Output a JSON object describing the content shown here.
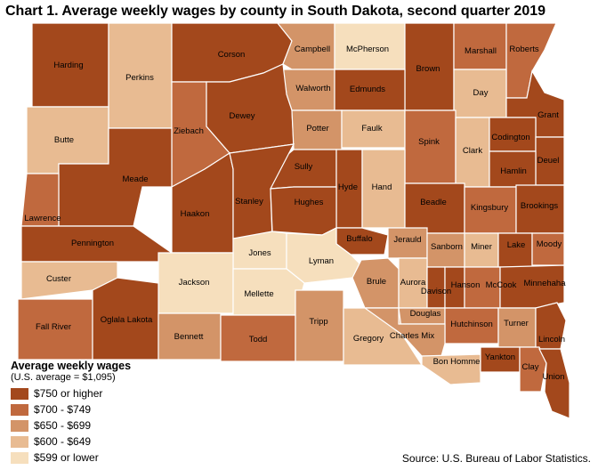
{
  "title": "Chart 1. Average weekly wages by county in South Dakota, second quarter 2019",
  "source": "Source: U.S. Bureau of Labor Statistics.",
  "legend": {
    "title": "Average weekly wages",
    "subtitle": "(U.S. average = $1,095)",
    "classes": [
      {
        "label": "$750 or higher",
        "color": "#a3481c"
      },
      {
        "label": "$700 - $749",
        "color": "#c0693e"
      },
      {
        "label": "$650 - $699",
        "color": "#d39468"
      },
      {
        "label": "$600 - $649",
        "color": "#e8bb92"
      },
      {
        "label": "$599 or lower",
        "color": "#f6dfbd"
      }
    ]
  },
  "counties": [
    {
      "name": "Harding",
      "class": 0
    },
    {
      "name": "Perkins",
      "class": 3
    },
    {
      "name": "Corson",
      "class": 0
    },
    {
      "name": "Campbell",
      "class": 2
    },
    {
      "name": "McPherson",
      "class": 4
    },
    {
      "name": "Brown",
      "class": 0
    },
    {
      "name": "Marshall",
      "class": 1
    },
    {
      "name": "Roberts",
      "class": 1
    },
    {
      "name": "Walworth",
      "class": 2
    },
    {
      "name": "Edmunds",
      "class": 0
    },
    {
      "name": "Day",
      "class": 3
    },
    {
      "name": "Butte",
      "class": 3
    },
    {
      "name": "Ziebach",
      "class": 1
    },
    {
      "name": "Dewey",
      "class": 0
    },
    {
      "name": "Potter",
      "class": 2
    },
    {
      "name": "Faulk",
      "class": 3
    },
    {
      "name": "Spink",
      "class": 1
    },
    {
      "name": "Clark",
      "class": 3
    },
    {
      "name": "Grant",
      "class": 0
    },
    {
      "name": "Codington",
      "class": 0
    },
    {
      "name": "Deuel",
      "class": 0
    },
    {
      "name": "Hamlin",
      "class": 0
    },
    {
      "name": "Meade",
      "class": 0
    },
    {
      "name": "Sully",
      "class": 0
    },
    {
      "name": "Hyde",
      "class": 0
    },
    {
      "name": "Hand",
      "class": 3
    },
    {
      "name": "Beadle",
      "class": 0
    },
    {
      "name": "Kingsbury",
      "class": 1
    },
    {
      "name": "Brookings",
      "class": 0
    },
    {
      "name": "Lawrence",
      "class": 1
    },
    {
      "name": "Haakon",
      "class": 0
    },
    {
      "name": "Stanley",
      "class": 0
    },
    {
      "name": "Hughes",
      "class": 0
    },
    {
      "name": "Pennington",
      "class": 0
    },
    {
      "name": "Buffalo",
      "class": 0
    },
    {
      "name": "Jerauld",
      "class": 2
    },
    {
      "name": "Sanborn",
      "class": 2
    },
    {
      "name": "Miner",
      "class": 3
    },
    {
      "name": "Lake",
      "class": 0
    },
    {
      "name": "Moody",
      "class": 1
    },
    {
      "name": "Jones",
      "class": 4
    },
    {
      "name": "Lyman",
      "class": 4
    },
    {
      "name": "Custer",
      "class": 3
    },
    {
      "name": "Jackson",
      "class": 4
    },
    {
      "name": "Mellette",
      "class": 4
    },
    {
      "name": "Brule",
      "class": 2
    },
    {
      "name": "Aurora",
      "class": 3
    },
    {
      "name": "Davison",
      "class": 0
    },
    {
      "name": "Hanson",
      "class": 0
    },
    {
      "name": "McCook",
      "class": 1
    },
    {
      "name": "Minnehaha",
      "class": 0
    },
    {
      "name": "Fall River",
      "class": 1
    },
    {
      "name": "Oglala Lakota",
      "class": 0
    },
    {
      "name": "Bennett",
      "class": 2
    },
    {
      "name": "Todd",
      "class": 1
    },
    {
      "name": "Tripp",
      "class": 2
    },
    {
      "name": "Douglas",
      "class": 2
    },
    {
      "name": "Hutchinson",
      "class": 1
    },
    {
      "name": "Turner",
      "class": 2
    },
    {
      "name": "Lincoln",
      "class": 0
    },
    {
      "name": "Gregory",
      "class": 3
    },
    {
      "name": "Charles Mix",
      "class": 2
    },
    {
      "name": "Bon Homme",
      "class": 3
    },
    {
      "name": "Yankton",
      "class": 0
    },
    {
      "name": "Clay",
      "class": 1
    },
    {
      "name": "Union",
      "class": 0
    }
  ]
}
